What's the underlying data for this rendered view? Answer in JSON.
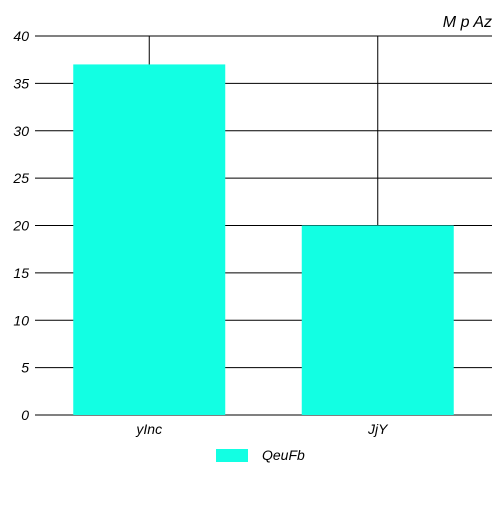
{
  "chart_data": {
    "type": "bar",
    "title": "M p Az",
    "xlabel": "",
    "ylabel": "",
    "categories": [
      "yInc",
      "JjY"
    ],
    "series": [
      {
        "name": "QeuFb",
        "values": [
          37,
          20
        ]
      }
    ],
    "ylim": [
      0,
      40
    ],
    "yticks": [
      "0",
      "5",
      "10",
      "15",
      "20",
      "25",
      "30",
      "35",
      "40"
    ],
    "grid": "horizontal and vertical",
    "legend_position": "bottom-center",
    "colors": {
      "bar": "#12ffe3",
      "grid": "#000000",
      "background": "#ffffff"
    }
  }
}
